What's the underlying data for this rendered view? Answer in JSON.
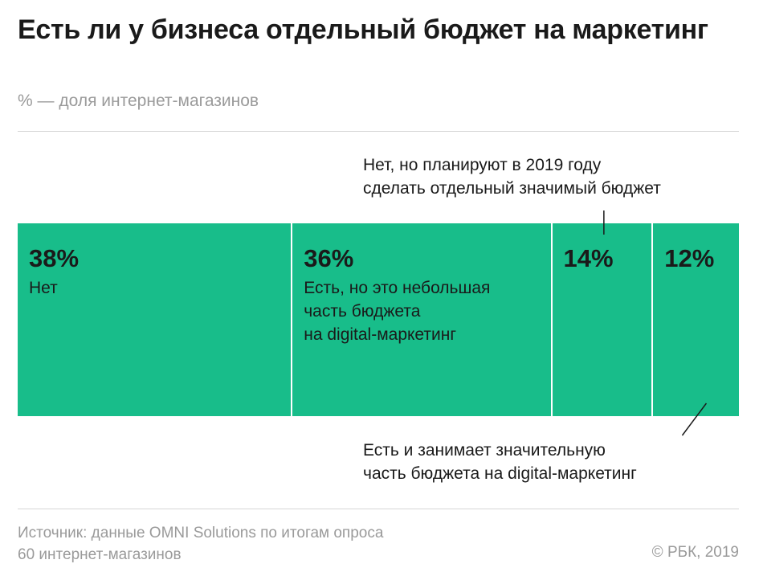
{
  "header": {
    "title": "Есть ли у бизнеса отдельный бюджет на маркетинг",
    "subtitle": "% — доля интернет-магазинов"
  },
  "chart_data": {
    "type": "bar",
    "orientation": "horizontal-stacked-100",
    "title": "Есть ли у бизнеса отдельный бюджет на маркетинг",
    "subtitle": "% — доля интернет-магазинов",
    "unit": "%",
    "segments": [
      {
        "value": 38,
        "value_label": "38%",
        "label": "Нет"
      },
      {
        "value": 36,
        "value_label": "36%",
        "label": "Есть, но это небольшая\nчасть бюджета\nна digital-маркетинг"
      },
      {
        "value": 14,
        "value_label": "14%",
        "label": ""
      },
      {
        "value": 12,
        "value_label": "12%",
        "label": ""
      }
    ],
    "annotations": [
      {
        "segment": 2,
        "position": "top",
        "text": "Нет, но планируют в 2019 году\nсделать отдельный значимый бюджет"
      },
      {
        "segment": 3,
        "position": "bottom",
        "text": "Есть и занимает значительную\nчасть бюджета на digital-маркетинг"
      }
    ],
    "colors": {
      "bar": "#18bd8a",
      "separator": "#ffffff",
      "text": "#1a1a1a",
      "muted": "#9a9a9a"
    }
  },
  "footer": {
    "source": "Источник: данные OMNI Solutions по итогам опроса\n60 интернет-магазинов",
    "copyright": "© РБК, 2019"
  }
}
